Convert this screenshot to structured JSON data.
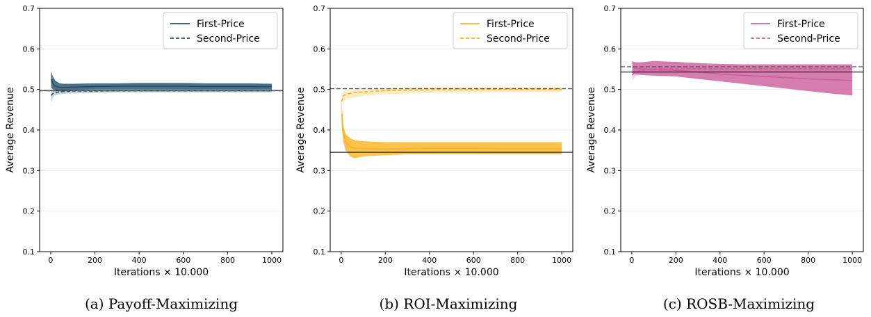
{
  "figure": {
    "captions": [
      "(a) Payoff-Maximizing",
      "(b) ROI-Maximizing",
      "(c) ROSB-Maximizing"
    ]
  },
  "chart_data": [
    {
      "type": "line",
      "color": "#1f4e6b",
      "xlabel": "Iterations × 10.000",
      "ylabel": "Average Revenue",
      "xlim": [
        -50,
        1050
      ],
      "ylim": [
        0.1,
        0.7
      ],
      "xticks": [
        "0",
        "200",
        "400",
        "600",
        "800",
        "1000"
      ],
      "yticks": [
        "0.1",
        "0.2",
        "0.3",
        "0.4",
        "0.5",
        "0.6",
        "0.7"
      ],
      "legend": [
        "First-Price",
        "Second-Price"
      ],
      "legend_position": "top-right",
      "grid": "horizontal",
      "reference_lines": {
        "first_price": 0.497,
        "second_price": 0.497
      },
      "series": [
        {
          "name": "First-Price",
          "style": "solid",
          "x": [
            2,
            10,
            20,
            40,
            60,
            100,
            200,
            300,
            400,
            500,
            600,
            700,
            800,
            900,
            1000
          ],
          "y": [
            0.525,
            0.515,
            0.508,
            0.505,
            0.505,
            0.506,
            0.507,
            0.508,
            0.508,
            0.508,
            0.508,
            0.507,
            0.507,
            0.507,
            0.507
          ],
          "lower": [
            0.505,
            0.5,
            0.498,
            0.497,
            0.498,
            0.499,
            0.5,
            0.5,
            0.5,
            0.5,
            0.5,
            0.5,
            0.5,
            0.5,
            0.5
          ],
          "upper": [
            0.545,
            0.532,
            0.522,
            0.515,
            0.514,
            0.514,
            0.515,
            0.515,
            0.516,
            0.516,
            0.516,
            0.515,
            0.515,
            0.515,
            0.514
          ]
        },
        {
          "name": "Second-Price",
          "style": "dashed",
          "x": [
            2,
            10,
            20,
            40,
            60,
            100,
            200,
            300,
            400,
            500,
            600,
            700,
            800,
            900,
            1000
          ],
          "y": [
            0.485,
            0.49,
            0.492,
            0.494,
            0.495,
            0.496,
            0.496,
            0.497,
            0.497,
            0.497,
            0.497,
            0.497,
            0.497,
            0.497,
            0.497
          ],
          "lower": [
            0.465,
            0.48,
            0.485,
            0.488,
            0.489,
            0.49,
            0.491,
            0.492,
            0.492,
            0.492,
            0.492,
            0.492,
            0.492,
            0.492,
            0.492
          ],
          "upper": [
            0.5,
            0.499,
            0.499,
            0.5,
            0.501,
            0.501,
            0.501,
            0.501,
            0.501,
            0.501,
            0.502,
            0.502,
            0.502,
            0.502,
            0.502
          ]
        }
      ]
    },
    {
      "type": "line",
      "color": "#f9b31d",
      "xlabel": "Iterations × 10.000",
      "ylabel": "Average Revenue",
      "xlim": [
        -50,
        1050
      ],
      "ylim": [
        0.1,
        0.7
      ],
      "xticks": [
        "0",
        "200",
        "400",
        "600",
        "800",
        "1000"
      ],
      "yticks": [
        "0.1",
        "0.2",
        "0.3",
        "0.4",
        "0.5",
        "0.6",
        "0.7"
      ],
      "legend": [
        "First-Price",
        "Second-Price"
      ],
      "legend_position": "top-right",
      "grid": "horizontal",
      "reference_lines": {
        "first_price": 0.345,
        "second_price": 0.502
      },
      "series": [
        {
          "name": "First-Price",
          "style": "solid",
          "x": [
            2,
            10,
            20,
            40,
            60,
            100,
            200,
            300,
            400,
            500,
            600,
            700,
            800,
            900,
            1000
          ],
          "y": [
            0.44,
            0.39,
            0.37,
            0.358,
            0.355,
            0.354,
            0.353,
            0.354,
            0.355,
            0.355,
            0.355,
            0.354,
            0.354,
            0.354,
            0.354
          ],
          "lower": [
            0.41,
            0.37,
            0.35,
            0.335,
            0.33,
            0.335,
            0.338,
            0.34,
            0.34,
            0.34,
            0.34,
            0.34,
            0.34,
            0.34,
            0.34
          ],
          "upper": [
            0.47,
            0.41,
            0.39,
            0.38,
            0.375,
            0.372,
            0.37,
            0.37,
            0.37,
            0.37,
            0.37,
            0.37,
            0.37,
            0.37,
            0.37
          ]
        },
        {
          "name": "Second-Price",
          "style": "dashed",
          "x": [
            2,
            10,
            20,
            40,
            60,
            100,
            200,
            300,
            400,
            500,
            600,
            700,
            800,
            900,
            1000
          ],
          "y": [
            0.47,
            0.484,
            0.488,
            0.49,
            0.492,
            0.494,
            0.497,
            0.498,
            0.499,
            0.499,
            0.499,
            0.5,
            0.5,
            0.5,
            0.5
          ],
          "lower": [
            0.46,
            0.47,
            0.475,
            0.478,
            0.48,
            0.484,
            0.488,
            0.49,
            0.491,
            0.492,
            0.492,
            0.493,
            0.493,
            0.493,
            0.493
          ],
          "upper": [
            0.49,
            0.495,
            0.497,
            0.498,
            0.499,
            0.5,
            0.503,
            0.504,
            0.505,
            0.505,
            0.505,
            0.505,
            0.505,
            0.505,
            0.505
          ]
        }
      ]
    },
    {
      "type": "line",
      "color": "#cc5c9c",
      "xlabel": "Iterations × 10.000",
      "ylabel": "Average Revenue",
      "xlim": [
        -50,
        1050
      ],
      "ylim": [
        0.1,
        0.7
      ],
      "xticks": [
        "0",
        "200",
        "400",
        "600",
        "800",
        "1000"
      ],
      "yticks": [
        "0.1",
        "0.2",
        "0.3",
        "0.4",
        "0.5",
        "0.6",
        "0.7"
      ],
      "legend": [
        "First-Price",
        "Second-Price"
      ],
      "legend_position": "top-right",
      "grid": "horizontal",
      "reference_lines": {
        "first_price": 0.543,
        "second_price": 0.556
      },
      "series": [
        {
          "name": "First-Price",
          "style": "solid",
          "x": [
            2,
            10,
            20,
            40,
            60,
            100,
            200,
            300,
            400,
            500,
            600,
            700,
            800,
            900,
            1000
          ],
          "y": [
            0.555,
            0.553,
            0.552,
            0.551,
            0.55,
            0.549,
            0.547,
            0.543,
            0.538,
            0.535,
            0.532,
            0.529,
            0.526,
            0.524,
            0.522
          ],
          "lower": [
            0.54,
            0.538,
            0.537,
            0.536,
            0.535,
            0.534,
            0.532,
            0.526,
            0.52,
            0.514,
            0.508,
            0.502,
            0.496,
            0.49,
            0.485
          ],
          "upper": [
            0.57,
            0.568,
            0.567,
            0.567,
            0.568,
            0.57,
            0.568,
            0.565,
            0.563,
            0.562,
            0.562,
            0.562,
            0.562,
            0.562,
            0.562
          ]
        },
        {
          "name": "Second-Price",
          "style": "dashed",
          "x": [
            2,
            10,
            20,
            40,
            60,
            100,
            200,
            300,
            400,
            500,
            600,
            700,
            800,
            900,
            1000
          ],
          "y": [
            0.535,
            0.54,
            0.543,
            0.546,
            0.548,
            0.55,
            0.551,
            0.551,
            0.551,
            0.551,
            0.551,
            0.551,
            0.551,
            0.551,
            0.551
          ],
          "lower": [
            0.52,
            0.528,
            0.533,
            0.538,
            0.541,
            0.544,
            0.545,
            0.545,
            0.546,
            0.546,
            0.546,
            0.546,
            0.546,
            0.546,
            0.546
          ],
          "upper": [
            0.55,
            0.553,
            0.555,
            0.557,
            0.558,
            0.558,
            0.558,
            0.557,
            0.557,
            0.557,
            0.557,
            0.557,
            0.557,
            0.557,
            0.557
          ]
        }
      ]
    }
  ]
}
